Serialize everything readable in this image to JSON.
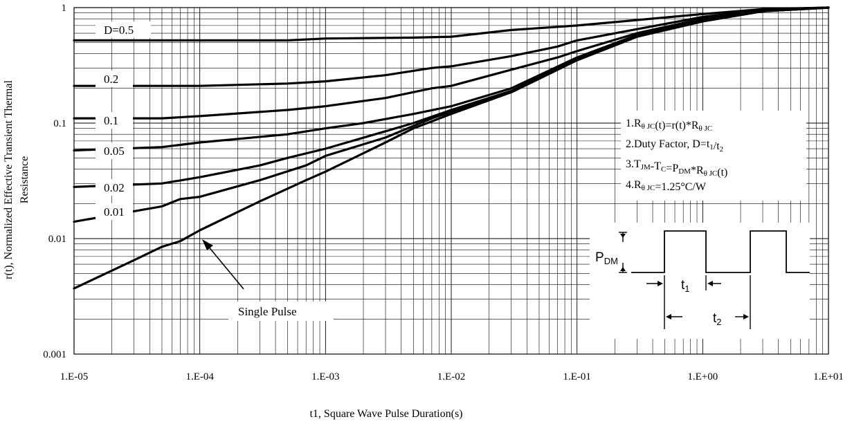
{
  "chart_data": {
    "type": "line",
    "xlabel": "t1, Square Wave Pulse Duration(s)",
    "ylabel_line1": "r(t), Normalized Effective Transient Thermal",
    "ylabel_line2": "Resistance",
    "x_scale": "log",
    "y_scale": "log",
    "xlim": [
      1e-05,
      10
    ],
    "ylim": [
      0.001,
      1
    ],
    "x_ticks": [
      1e-05,
      0.0001,
      0.001,
      0.01,
      0.1,
      1,
      10
    ],
    "x_tick_labels": [
      "1.E-05",
      "1.E-04",
      "1.E-03",
      "1.E-02",
      "1.E-01",
      "1.E+00",
      "1.E+01"
    ],
    "y_ticks": [
      0.001,
      0.01,
      0.1,
      1
    ],
    "y_tick_labels": [
      "0.001",
      "0.01",
      "0.1",
      "1"
    ],
    "grid": true,
    "series": [
      {
        "name": "D=0.5",
        "x": [
          1e-05,
          5e-05,
          0.0001,
          0.0005,
          0.001,
          0.005,
          0.01,
          0.03,
          0.1,
          0.3,
          1,
          3,
          10
        ],
        "y": [
          0.52,
          0.52,
          0.52,
          0.52,
          0.54,
          0.55,
          0.56,
          0.64,
          0.7,
          0.78,
          0.88,
          0.97,
          1.0
        ]
      },
      {
        "name": "0.2",
        "x": [
          1e-05,
          5e-05,
          0.0001,
          0.0005,
          0.001,
          0.003,
          0.007,
          0.01,
          0.03,
          0.07,
          0.1,
          0.3,
          1,
          3,
          10
        ],
        "y": [
          0.21,
          0.21,
          0.21,
          0.22,
          0.23,
          0.26,
          0.3,
          0.31,
          0.38,
          0.46,
          0.52,
          0.65,
          0.83,
          0.96,
          1.0
        ]
      },
      {
        "name": "0.1",
        "x": [
          1e-05,
          5e-05,
          0.0001,
          0.0005,
          0.001,
          0.003,
          0.007,
          0.01,
          0.03,
          0.07,
          0.1,
          0.3,
          1,
          3,
          10
        ],
        "y": [
          0.11,
          0.11,
          0.115,
          0.13,
          0.14,
          0.165,
          0.2,
          0.21,
          0.29,
          0.37,
          0.42,
          0.6,
          0.8,
          0.95,
          1.0
        ]
      },
      {
        "name": "0.05",
        "x": [
          1e-05,
          5e-05,
          0.0001,
          0.0005,
          0.001,
          0.002,
          0.005,
          0.01,
          0.03,
          0.1,
          0.3,
          1,
          3,
          10
        ],
        "y": [
          0.058,
          0.062,
          0.068,
          0.08,
          0.09,
          0.1,
          0.12,
          0.14,
          0.2,
          0.37,
          0.58,
          0.78,
          0.94,
          1.0
        ]
      },
      {
        "name": "0.02",
        "x": [
          1e-05,
          5e-05,
          0.0001,
          0.0003,
          0.0005,
          0.001,
          0.003,
          0.005,
          0.01,
          0.03,
          0.1,
          0.3,
          1,
          3,
          10
        ],
        "y": [
          0.028,
          0.03,
          0.034,
          0.043,
          0.05,
          0.06,
          0.085,
          0.1,
          0.13,
          0.19,
          0.36,
          0.57,
          0.77,
          0.93,
          1.0
        ]
      },
      {
        "name": "0.01",
        "x": [
          1e-05,
          5e-05,
          7e-05,
          0.0001,
          0.0003,
          0.0007,
          0.001,
          0.003,
          0.007,
          0.01,
          0.03,
          0.1,
          0.3,
          1,
          3,
          10
        ],
        "y": [
          0.014,
          0.019,
          0.022,
          0.023,
          0.032,
          0.043,
          0.052,
          0.075,
          0.11,
          0.125,
          0.185,
          0.35,
          0.56,
          0.76,
          0.93,
          1.0
        ]
      },
      {
        "name": "Single Pulse",
        "x": [
          1e-05,
          3e-05,
          5e-05,
          7e-05,
          0.0001,
          0.0003,
          0.0007,
          0.001,
          0.003,
          0.005,
          0.01,
          0.03,
          0.1,
          0.3,
          1,
          3,
          10
        ],
        "y": [
          0.0037,
          0.0065,
          0.0085,
          0.0095,
          0.0118,
          0.021,
          0.032,
          0.038,
          0.068,
          0.09,
          0.12,
          0.185,
          0.35,
          0.56,
          0.76,
          0.93,
          1.0
        ]
      }
    ],
    "annotations": {
      "notes": [
        {
          "id": "note1",
          "parts": [
            {
              "t": "1.R",
              "sub": false
            },
            {
              "t": "θ JC",
              "sub": true
            },
            {
              "t": "(t)=r(t)*R",
              "sub": false
            },
            {
              "t": "θ JC",
              "sub": true
            }
          ]
        },
        {
          "id": "note2",
          "parts": [
            {
              "t": "2.Duty Factor, D=t",
              "sub": false
            },
            {
              "t": "1",
              "sub": true
            },
            {
              "t": "/t",
              "sub": false
            },
            {
              "t": "2",
              "sub": true
            }
          ]
        },
        {
          "id": "note3",
          "parts": [
            {
              "t": "3.T",
              "sub": false
            },
            {
              "t": "JM",
              "sub": true
            },
            {
              "t": "-T",
              "sub": false
            },
            {
              "t": "C",
              "sub": true
            },
            {
              "t": "=P",
              "sub": false
            },
            {
              "t": "DM",
              "sub": true
            },
            {
              "t": "*R",
              "sub": false
            },
            {
              "t": "θ JC",
              "sub": true
            },
            {
              "t": "(t)",
              "sub": false
            }
          ]
        },
        {
          "id": "note4",
          "parts": [
            {
              "t": "4.R",
              "sub": false
            },
            {
              "t": "θ JC",
              "sub": true
            },
            {
              "t": "=1.25°C/W",
              "sub": false
            }
          ]
        }
      ],
      "single_pulse_label": "Single Pulse",
      "pulse_diagram": {
        "p_label": "P",
        "p_sub": "DM",
        "t1_label": "t",
        "t1_sub": "1",
        "t2_label": "t",
        "t2_sub": "2"
      }
    }
  }
}
